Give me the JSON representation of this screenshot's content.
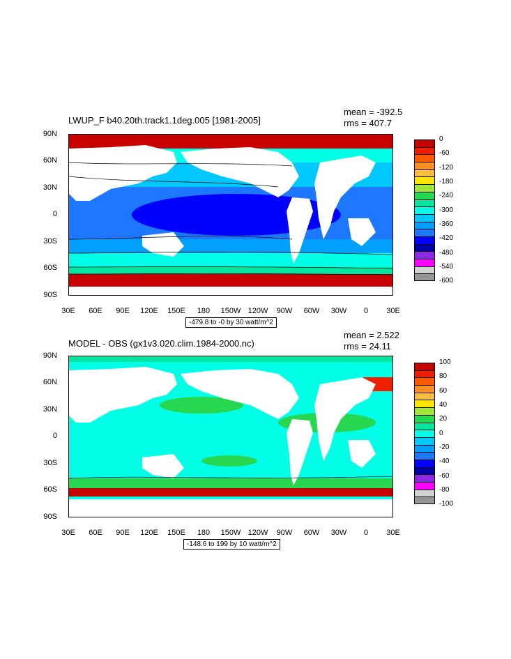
{
  "panels": [
    {
      "title": "LWUP_F b40.20th.track1.1deg.005 [1981-2005]",
      "mean": "mean = -392.5",
      "rms": "rms = 407.7",
      "note": "-479.8 to -0 by 30 watt/m^2",
      "colorbar_labels": [
        "0",
        "-60",
        "-120",
        "-180",
        "-240",
        "-300",
        "-360",
        "-420",
        "-480",
        "-540",
        "-600"
      ],
      "colorbar_colors": [
        "#c80000",
        "#f01e00",
        "#ff5a00",
        "#ff8c1e",
        "#ffbe3c",
        "#ffe600",
        "#a0e632",
        "#28d750",
        "#00e6a0",
        "#00ffe6",
        "#00c8ff",
        "#00a0ff",
        "#1e78ff",
        "#0000ff",
        "#0000aa",
        "#8c28e6",
        "#ff00ff",
        "#d2d2d2",
        "#969696"
      ]
    },
    {
      "title": "MODEL - OBS (gx1v3.020.clim.1984-2000.nc)",
      "mean": "mean = 2.522",
      "rms": "rms = 24.11",
      "note": "-148.6 to 199 by 10 watt/m^2",
      "colorbar_labels": [
        "100",
        "80",
        "60",
        "40",
        "20",
        "0",
        "-20",
        "-40",
        "-60",
        "-80",
        "-100"
      ],
      "colorbar_colors": [
        "#c80000",
        "#f01e00",
        "#ff5a00",
        "#ff8c1e",
        "#ffbe3c",
        "#ffe600",
        "#a0e632",
        "#28d750",
        "#00e6a0",
        "#00ffe6",
        "#00c8ff",
        "#00a0ff",
        "#1e78ff",
        "#0000ff",
        "#0000aa",
        "#8c28e6",
        "#ff00ff",
        "#d2d2d2",
        "#969696"
      ]
    }
  ],
  "lat_labels": [
    "90N",
    "60N",
    "30N",
    "0",
    "30S",
    "60S",
    "90S"
  ],
  "lon_labels": [
    "30E",
    "60E",
    "90E",
    "120E",
    "150E",
    "180",
    "150W",
    "120W",
    "90W",
    "60W",
    "30W",
    "0",
    "30E"
  ]
}
